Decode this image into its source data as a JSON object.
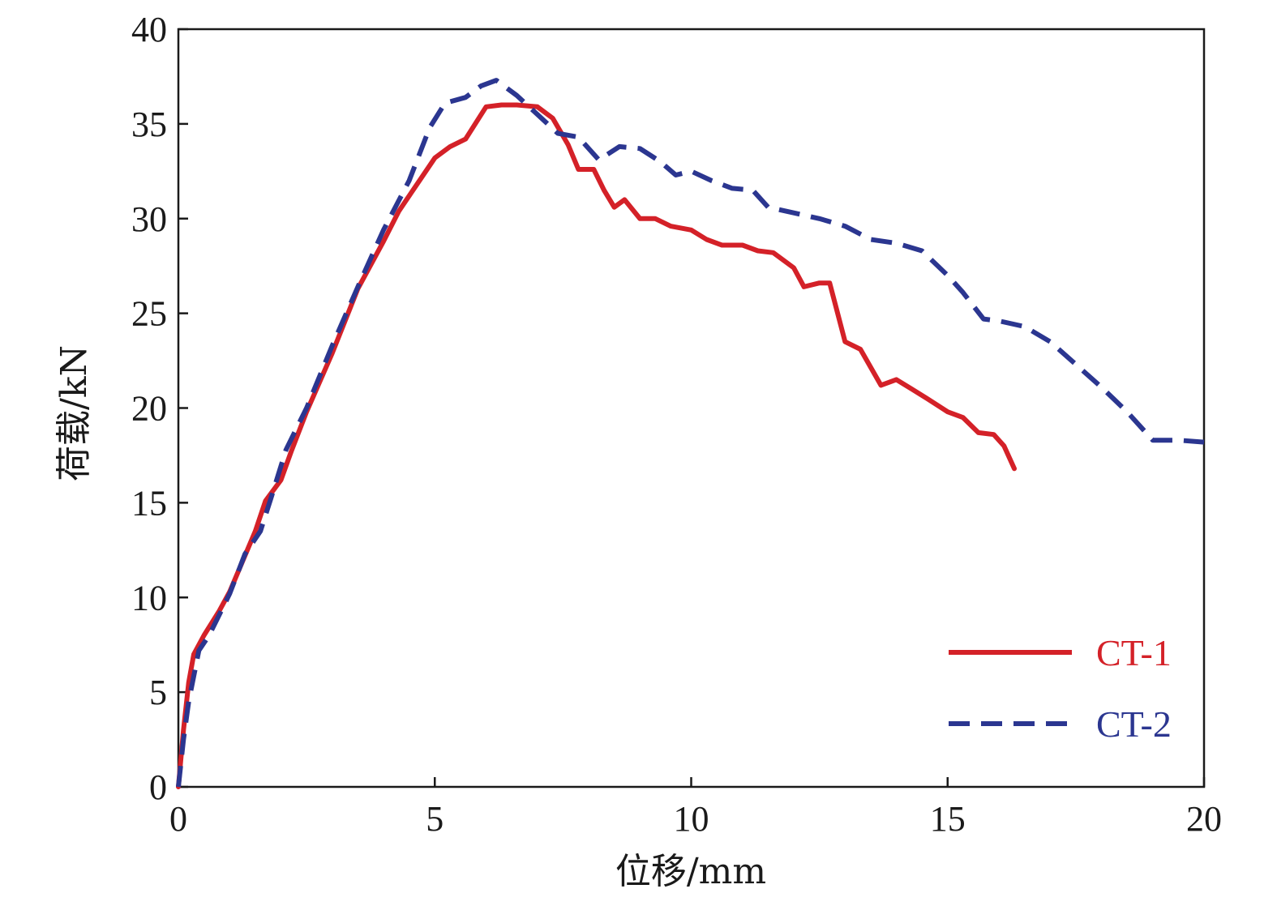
{
  "chart_data": {
    "type": "line",
    "xlabel": "位移/mm",
    "ylabel": "荷载/kN",
    "xlim": [
      0,
      20
    ],
    "ylim": [
      0,
      40
    ],
    "x_ticks": [
      "0",
      "5",
      "10",
      "15",
      "20"
    ],
    "y_ticks": [
      "0",
      "5",
      "10",
      "15",
      "20",
      "25",
      "30",
      "35",
      "40"
    ],
    "grid": false,
    "legend_position": "bottom-right",
    "series": [
      {
        "name": "CT-1",
        "color": "#d42128",
        "style": "solid",
        "points": [
          [
            0,
            0
          ],
          [
            0.1,
            3.0
          ],
          [
            0.2,
            5.5
          ],
          [
            0.3,
            7.0
          ],
          [
            0.5,
            8.0
          ],
          [
            0.8,
            9.3
          ],
          [
            1.0,
            10.3
          ],
          [
            1.5,
            13.5
          ],
          [
            1.7,
            15.1
          ],
          [
            2.0,
            16.2
          ],
          [
            2.2,
            17.7
          ],
          [
            2.5,
            19.8
          ],
          [
            3.0,
            22.9
          ],
          [
            3.5,
            26.3
          ],
          [
            4.0,
            28.8
          ],
          [
            4.3,
            30.4
          ],
          [
            4.6,
            31.6
          ],
          [
            5.0,
            33.2
          ],
          [
            5.3,
            33.8
          ],
          [
            5.6,
            34.2
          ],
          [
            6.0,
            35.9
          ],
          [
            6.3,
            36.0
          ],
          [
            6.6,
            36.0
          ],
          [
            7.0,
            35.9
          ],
          [
            7.3,
            35.3
          ],
          [
            7.6,
            33.9
          ],
          [
            7.8,
            32.6
          ],
          [
            8.1,
            32.6
          ],
          [
            8.3,
            31.5
          ],
          [
            8.5,
            30.6
          ],
          [
            8.7,
            31.0
          ],
          [
            9.0,
            30.0
          ],
          [
            9.3,
            30.0
          ],
          [
            9.6,
            29.6
          ],
          [
            10.0,
            29.4
          ],
          [
            10.3,
            28.9
          ],
          [
            10.6,
            28.6
          ],
          [
            11.0,
            28.6
          ],
          [
            11.3,
            28.3
          ],
          [
            11.6,
            28.2
          ],
          [
            12.0,
            27.4
          ],
          [
            12.2,
            26.4
          ],
          [
            12.5,
            26.6
          ],
          [
            12.7,
            26.6
          ],
          [
            13.0,
            23.5
          ],
          [
            13.3,
            23.1
          ],
          [
            13.7,
            21.2
          ],
          [
            14.0,
            21.5
          ],
          [
            14.3,
            21.0
          ],
          [
            14.6,
            20.5
          ],
          [
            15.0,
            19.8
          ],
          [
            15.3,
            19.5
          ],
          [
            15.6,
            18.7
          ],
          [
            15.9,
            18.6
          ],
          [
            16.1,
            18.0
          ],
          [
            16.3,
            16.8
          ]
        ]
      },
      {
        "name": "CT-2",
        "color": "#2b3690",
        "style": "dashed",
        "points": [
          [
            0,
            0
          ],
          [
            0.1,
            2.5
          ],
          [
            0.2,
            4.5
          ],
          [
            0.4,
            7.2
          ],
          [
            0.6,
            8.0
          ],
          [
            1.0,
            10.2
          ],
          [
            1.3,
            12.3
          ],
          [
            1.6,
            13.5
          ],
          [
            1.8,
            15.2
          ],
          [
            2.1,
            17.8
          ],
          [
            2.5,
            20.0
          ],
          [
            3.0,
            23.3
          ],
          [
            3.5,
            26.4
          ],
          [
            4.0,
            29.4
          ],
          [
            4.5,
            32.0
          ],
          [
            4.9,
            34.8
          ],
          [
            5.2,
            36.1
          ],
          [
            5.6,
            36.4
          ],
          [
            5.9,
            37.0
          ],
          [
            6.2,
            37.3
          ],
          [
            6.6,
            36.5
          ],
          [
            7.0,
            35.5
          ],
          [
            7.4,
            34.5
          ],
          [
            7.8,
            34.3
          ],
          [
            8.2,
            33.1
          ],
          [
            8.6,
            33.8
          ],
          [
            9.0,
            33.7
          ],
          [
            9.4,
            33.0
          ],
          [
            9.7,
            32.3
          ],
          [
            10.0,
            32.5
          ],
          [
            10.4,
            32.0
          ],
          [
            10.8,
            31.6
          ],
          [
            11.2,
            31.5
          ],
          [
            11.5,
            30.6
          ],
          [
            12.0,
            30.3
          ],
          [
            12.5,
            30.0
          ],
          [
            13.0,
            29.6
          ],
          [
            13.5,
            28.9
          ],
          [
            14.0,
            28.7
          ],
          [
            14.5,
            28.3
          ],
          [
            15.0,
            27.0
          ],
          [
            15.3,
            26.1
          ],
          [
            15.7,
            24.7
          ],
          [
            16.0,
            24.6
          ],
          [
            16.5,
            24.3
          ],
          [
            17.0,
            23.5
          ],
          [
            17.5,
            22.3
          ],
          [
            18.0,
            21.1
          ],
          [
            18.5,
            19.8
          ],
          [
            19.0,
            18.3
          ],
          [
            19.5,
            18.3
          ],
          [
            20.0,
            18.2
          ]
        ]
      }
    ]
  }
}
